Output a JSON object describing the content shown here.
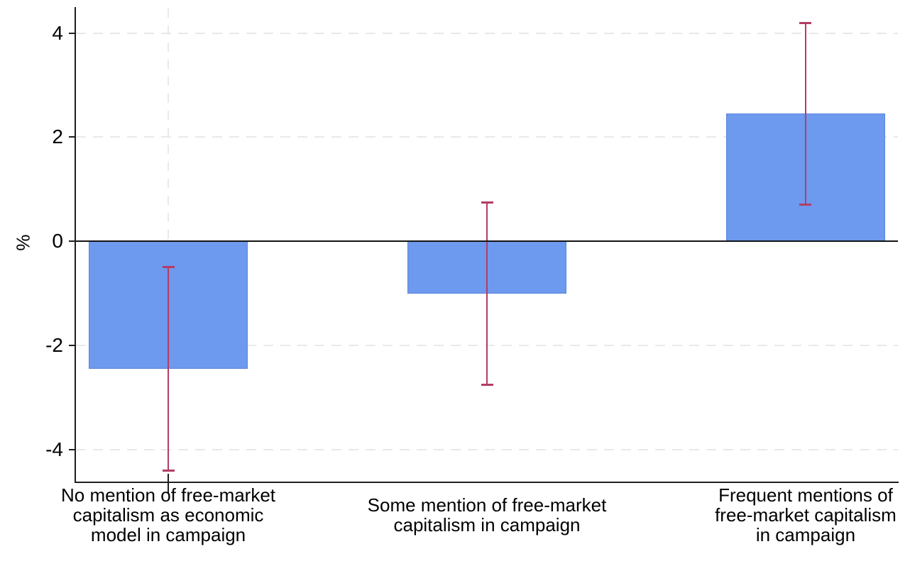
{
  "chart_data": {
    "type": "bar",
    "ylabel": "%",
    "categories": [
      "No mention of free-market\ncapitalism as economic\nmodel in campaign",
      "Some mention of free-market\ncapitalism in campaign",
      "Frequent mentions of\nfree-market capitalism\nin campaign"
    ],
    "values": [
      -2.45,
      -1.0,
      2.45
    ],
    "error_bars": {
      "low": [
        -4.4,
        -2.75,
        0.7
      ],
      "high": [
        -0.5,
        0.75,
        4.2
      ]
    },
    "yticks": [
      4,
      2,
      0,
      -2,
      -4
    ],
    "ylim": [
      -4.63,
      4.5
    ],
    "grid": "horizontal dashed gridlines at y ticks; dashed vertical dropline at first category only",
    "legend_position": "none",
    "colors": {
      "bar_fill": "#6d99ee",
      "bar_border": "#5b86dd",
      "error_bar": "#b23e65",
      "axis": "#1f1f1f",
      "gridline": "#e9e9e9",
      "background": "#ffffff"
    }
  }
}
